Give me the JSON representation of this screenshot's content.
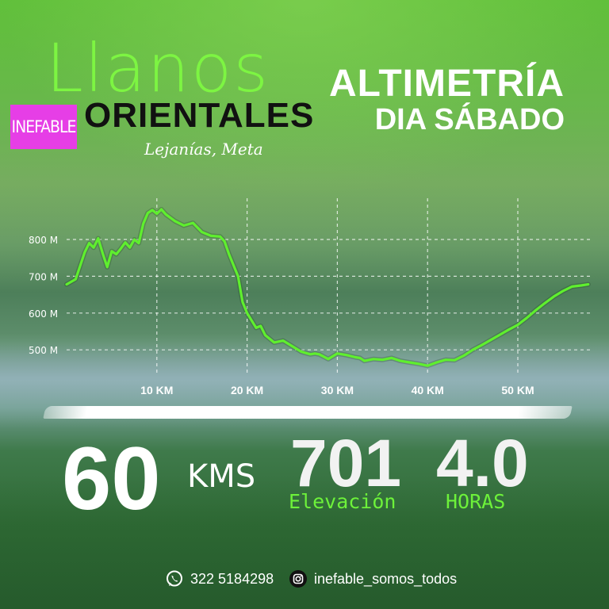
{
  "brand": {
    "title": "Llanos",
    "subtitle": "ORIENTALES",
    "tag": "INEFABLE",
    "location": "Lejanías, Meta"
  },
  "headline": {
    "line1": "ALTIMETRÍA",
    "line2": "DIA SÁBADO"
  },
  "chart_data": {
    "type": "line",
    "title": "",
    "xlabel": "",
    "ylabel": "",
    "xlim": [
      0,
      58
    ],
    "ylim": [
      440,
      900
    ],
    "grid": true,
    "x_ticks": [
      10,
      20,
      30,
      40,
      50
    ],
    "x_tick_labels": [
      "10 KM",
      "20 KM",
      "30 KM",
      "40 KM",
      "50 KM"
    ],
    "y_ticks": [
      500,
      600,
      700,
      800
    ],
    "y_tick_labels": [
      "500 M",
      "600 M",
      "700 M",
      "800 M"
    ],
    "line_color": "#5fef2e",
    "series": [
      {
        "x": [
          0,
          1,
          2,
          2.5,
          3,
          3.5,
          4,
          4.5,
          5,
          5.5,
          6,
          6.5,
          7,
          7.5,
          8,
          8.5,
          9,
          9.5,
          10,
          10.5,
          11,
          12,
          13,
          14,
          15,
          16,
          17,
          17.5,
          18,
          19,
          19.5,
          20,
          21,
          21.5,
          22,
          23,
          24,
          25,
          26,
          27,
          27.5,
          28,
          29,
          30,
          31,
          32,
          32.5,
          33,
          34,
          35,
          36,
          37,
          38,
          39,
          40,
          41,
          42,
          43,
          44,
          45,
          46,
          47,
          48,
          49,
          50,
          51,
          52,
          53,
          54,
          55,
          56,
          57,
          57.8
        ],
        "y": [
          678,
          692,
          765,
          790,
          778,
          803,
          762,
          725,
          768,
          760,
          775,
          792,
          778,
          800,
          790,
          843,
          872,
          880,
          870,
          882,
          868,
          850,
          838,
          845,
          820,
          810,
          808,
          795,
          760,
          700,
          630,
          600,
          560,
          565,
          540,
          520,
          525,
          510,
          495,
          488,
          490,
          488,
          475,
          490,
          486,
          480,
          478,
          470,
          475,
          473,
          478,
          470,
          466,
          462,
          457,
          466,
          473,
          472,
          484,
          500,
          513,
          527,
          541,
          555,
          568,
          587,
          608,
          627,
          645,
          660,
          672,
          675,
          678
        ]
      }
    ]
  },
  "stats": {
    "distance_value": "60",
    "distance_unit": "KMS",
    "elevation_value": "701",
    "elevation_label": "Elevación",
    "hours_value": "4.0",
    "hours_label": "HORAS"
  },
  "contact": {
    "phone": "322 5184298",
    "social": "inefable_somos_todos",
    "phone_icon": "whatsapp-icon",
    "social_icon": "instagram-icon"
  }
}
